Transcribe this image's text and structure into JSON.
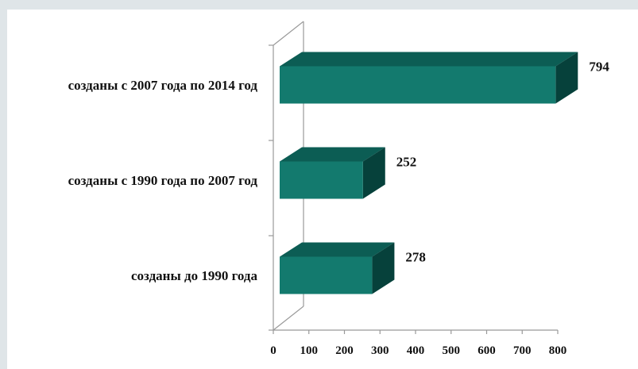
{
  "chart_data": {
    "type": "bar",
    "orientation": "horizontal",
    "style": "3d",
    "categories": [
      "созданы до 1990 года",
      "созданы с 1990 года по 2007 год",
      "созданы с 2007 года по 2014 год"
    ],
    "values": [
      278,
      252,
      794
    ],
    "xlim": [
      0,
      800
    ],
    "xticks": [
      "0",
      "100",
      "200",
      "300",
      "400",
      "500",
      "600",
      "700",
      "800"
    ],
    "title": "",
    "xlabel": "",
    "ylabel": "",
    "grid": false,
    "legend": "none",
    "colors": {
      "bar_front": "#137a6e",
      "bar_top": "#0c5d54",
      "bar_side": "#06413b",
      "axis": "#999999",
      "background": "#dfe5e8"
    }
  }
}
